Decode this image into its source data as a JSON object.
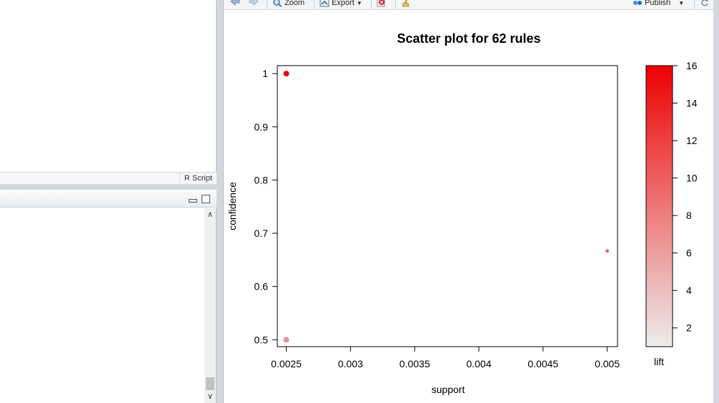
{
  "editor": {
    "script_type": "R Script"
  },
  "toolbar": {
    "zoom_label": "Zoom",
    "export_label": "Export",
    "publish_label": "Publish"
  },
  "plot": {
    "title": "Scatter plot for 62 rules",
    "xlabel": "support",
    "ylabel": "confidence",
    "colorbar_label": "lift"
  },
  "chart_data": {
    "type": "scatter",
    "title": "Scatter plot for 62 rules",
    "xlabel": "support",
    "ylabel": "confidence",
    "xlim": [
      0.00243,
      0.00508
    ],
    "ylim": [
      0.487,
      1.015
    ],
    "x_ticks": [
      "0.0025",
      "0.003",
      "0.0035",
      "0.004",
      "0.0045",
      "0.005"
    ],
    "y_ticks": [
      "0.5",
      "0.6",
      "0.7",
      "0.8",
      "0.9",
      "1"
    ],
    "points": [
      {
        "support": 0.0025,
        "confidence": 1.0,
        "lift": 16,
        "color": "#e8000b"
      },
      {
        "support": 0.0025,
        "confidence": 0.5,
        "lift": 4.5,
        "color": "#e59595"
      },
      {
        "support": 0.005,
        "confidence": 0.6667,
        "lift": 10,
        "color": "#ee6666"
      }
    ],
    "colorbar": {
      "label": "lift",
      "range": [
        1,
        16
      ],
      "ticks": [
        "2",
        "4",
        "6",
        "8",
        "10",
        "12",
        "14",
        "16"
      ],
      "low_color": "#ededed",
      "high_color": "#ee0000"
    }
  }
}
